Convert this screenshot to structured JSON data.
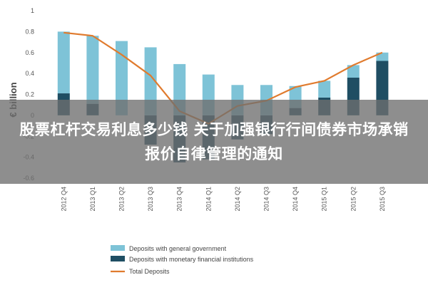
{
  "headline": "股票杠杆交易利息多少钱 关于加强银行行间债券市场承销报价自律管理的通知",
  "chart_data": {
    "type": "bar",
    "categories": [
      "2012 Q4",
      "2013 Q1",
      "2013 Q2",
      "2013 Q3",
      "2013 Q4",
      "2014 Q1",
      "2014 Q2",
      "2014 Q3",
      "2014 Q4",
      "2015 Q1",
      "2015 Q2",
      "2015 Q3"
    ],
    "series": [
      {
        "name": "Deposits with general government",
        "type": "bar",
        "color": "#7ec3d7",
        "values": [
          0.59,
          0.65,
          0.71,
          0.65,
          0.49,
          0.39,
          0.29,
          0.29,
          0.21,
          0.16,
          0.12,
          0.08
        ]
      },
      {
        "name": "Deposits with monetary financial institutions",
        "type": "bar",
        "color": "#1f4e63",
        "values": [
          0.21,
          0.11,
          0.0,
          -0.28,
          -0.45,
          -0.42,
          -0.23,
          -0.18,
          0.07,
          0.17,
          0.36,
          0.52
        ]
      },
      {
        "name": "Total Deposits",
        "type": "line",
        "color": "#e07b2e",
        "values": [
          0.79,
          0.76,
          0.58,
          0.38,
          0.04,
          -0.08,
          0.09,
          0.14,
          0.27,
          0.33,
          0.48,
          0.6
        ]
      }
    ],
    "ylabel": "€ billion",
    "ylim": [
      -0.6,
      1.0
    ],
    "yticks": [
      "1",
      "0.8",
      "0.6",
      "0.4",
      "0.2",
      "0",
      "-0.2",
      "-0.4",
      "-0.6"
    ],
    "grid": false,
    "legend_position": "bottom"
  }
}
